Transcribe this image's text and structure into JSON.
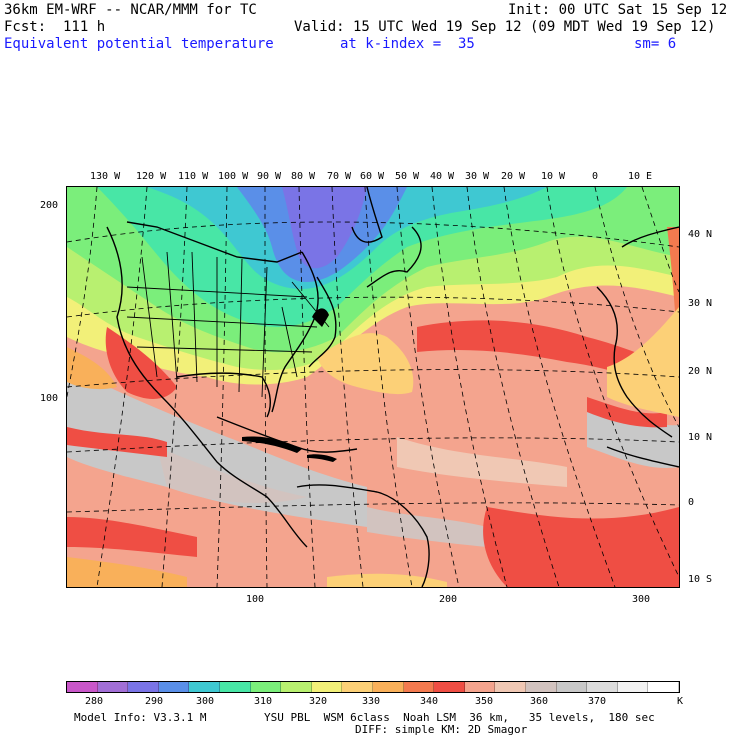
{
  "header": {
    "model": "36km EM-WRF -- NCAR/MMM for TC",
    "init": "Init: 00 UTC Sat 15 Sep 12",
    "fcst": "Fcst:  111 h",
    "valid": "Valid: 15 UTC Wed 19 Sep 12 (09 MDT Wed 19 Sep 12)",
    "field": "Equivalent potential temperature",
    "level": "at k-index =  35",
    "smooth": "sm= 6"
  },
  "map": {
    "top_lon_labels": [
      "130 W",
      "120 W",
      "110 W",
      "100 W",
      "90 W",
      "80 W",
      "70 W",
      "60 W",
      "50 W",
      "40 W",
      "30 W",
      "20 W",
      "10 W",
      "0",
      "10 E"
    ],
    "right_lat_labels": [
      "40 N",
      "30 N",
      "20 N",
      "10 N",
      "0",
      "10 S"
    ],
    "left_grid_labels": [
      "200",
      "100"
    ],
    "bottom_grid_labels": [
      "100",
      "200",
      "300"
    ]
  },
  "colorbar": {
    "colors": [
      "#c957c9",
      "#a26fd6",
      "#7a74e6",
      "#5a8fe8",
      "#3fc8d2",
      "#48e6a6",
      "#7bee7b",
      "#b8f070",
      "#f2f079",
      "#fcd077",
      "#f9b05a",
      "#f37a4f",
      "#ef4e44",
      "#f4a48e",
      "#f0c8b4",
      "#d2c3bf",
      "#c8c8c8",
      "#dcdcdc",
      "#f2f2f2",
      "#ffffff"
    ],
    "labels": [
      "280",
      "290",
      "300",
      "310",
      "320",
      "330",
      "340",
      "350",
      "360",
      "370"
    ],
    "unit": "K"
  },
  "footer": {
    "info": "Model Info: V3.3.1 M",
    "physics": "YSU PBL  WSM 6class  Noah LSM  36 km,   35 levels,  180 sec",
    "physics2": "DIFF: simple KM: 2D Smagor"
  }
}
